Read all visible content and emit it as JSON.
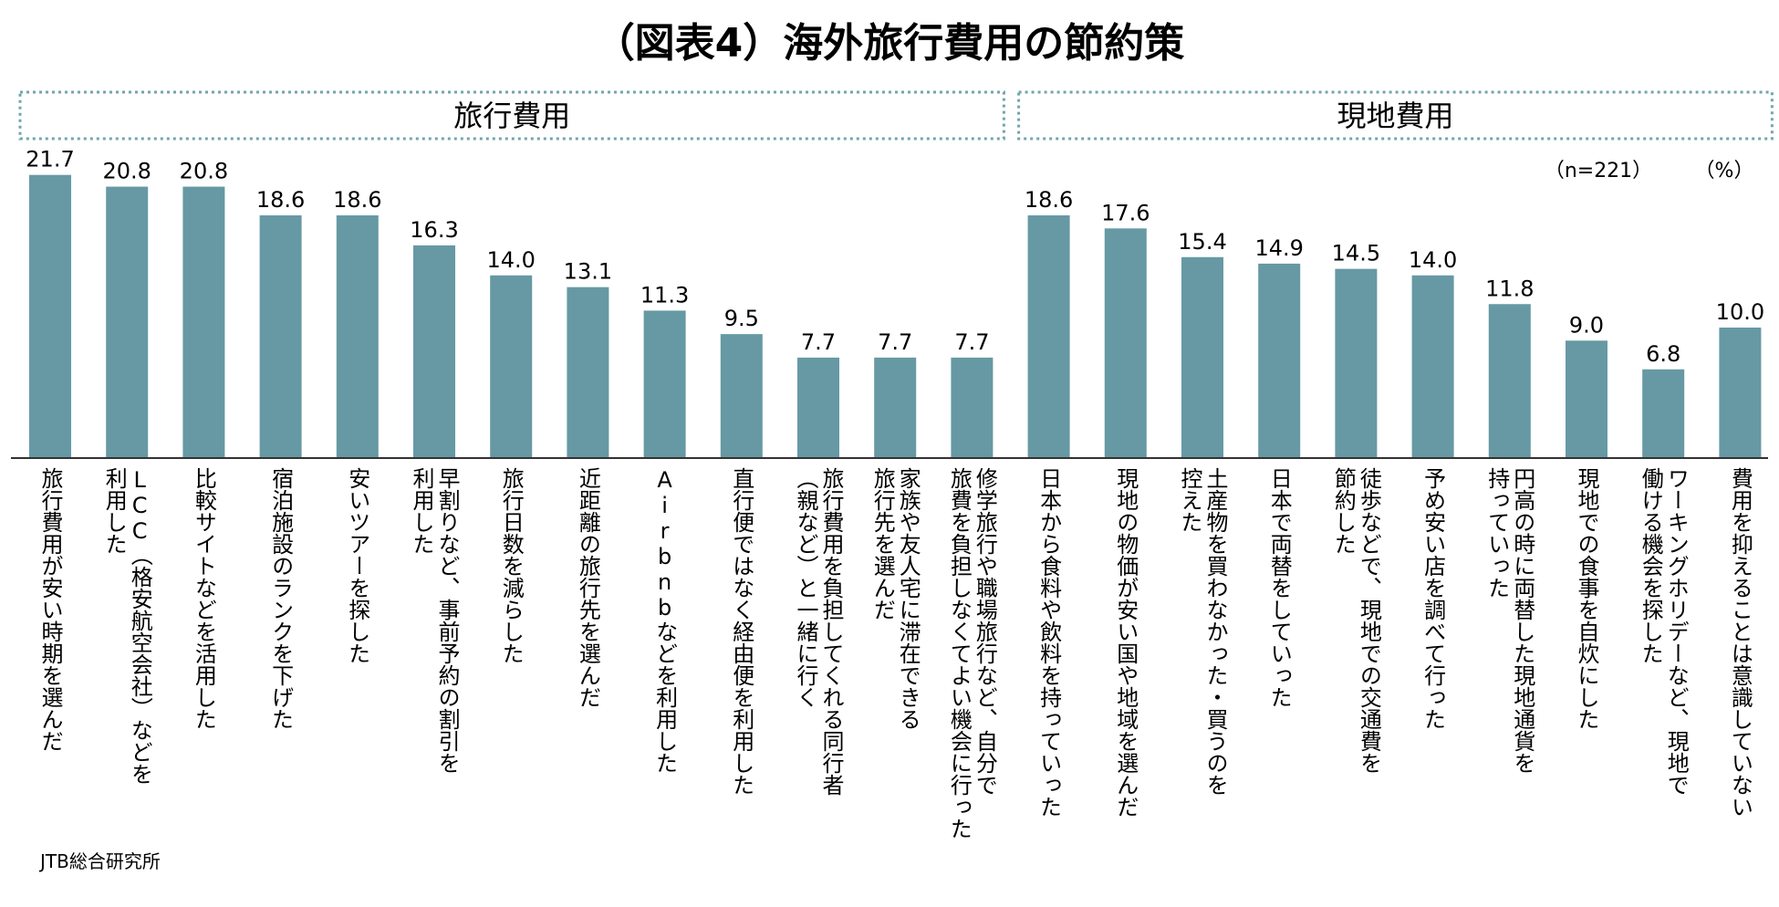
{
  "chart_data": {
    "type": "bar",
    "title": "（図表4）海外旅行費用の節約策",
    "groups": [
      {
        "label": "旅行費用",
        "start": 0,
        "end": 12
      },
      {
        "label": "現地費用",
        "start": 13,
        "end": 22
      }
    ],
    "sample_note": "（n=221）",
    "unit_note": "（%）",
    "source": "JTB総合研究所",
    "ylim": [
      0,
      25
    ],
    "categories": [
      "旅行費用が安い時期を選んだ",
      "LCC（格安航空会社）などを利用した",
      "比較サイトなどを活用した",
      "宿泊施設のランクを下げた",
      "安いツアーを探した",
      "早割りなど、事前予約の割引を利用した",
      "旅行日数を減らした",
      "近距離の旅行先を選んだ",
      "Airbnbなどを利用した",
      "直行便ではなく経由便を利用した",
      "旅行費用を負担してくれる同行者（親など）と一緒に行く",
      "家族や友人宅に滞在できる旅行先を選んだ",
      "修学旅行や職場旅行など、自分で旅費を負担しなくてよい機会に行った",
      "日本から食料や飲料を持っていった",
      "現地の物価が安い国や地域を選んだ",
      "土産物を買わなかった・買うのを控えた",
      "日本で両替をしていった",
      "徒歩などで、現地での交通費を節約した",
      "予め安い店を調べて行った",
      "円高の時に両替した現地通貨を持っていった",
      "現地での食事を自炊にした",
      "ワーキングホリデーなど、現地で働ける機会を探した",
      "費用を抑えることは意識していない"
    ],
    "values": [
      21.7,
      20.8,
      20.8,
      18.6,
      18.6,
      16.3,
      14.0,
      13.1,
      11.3,
      9.5,
      7.7,
      7.7,
      7.7,
      18.6,
      17.6,
      15.4,
      14.9,
      14.5,
      14.0,
      11.8,
      9.0,
      6.8,
      10.0
    ],
    "value_labels": [
      "21.7",
      "20.8",
      "20.8",
      "18.6",
      "18.6",
      "16.3",
      "14.0",
      "13.1",
      "11.3",
      "9.5",
      "7.7",
      "7.7",
      "7.7",
      "18.6",
      "17.6",
      "15.4",
      "14.9",
      "14.5",
      "14.0",
      "11.8",
      "9.0",
      "6.8",
      "10.0"
    ],
    "label_lines": [
      [
        "旅行費用が安い時期を選んだ"
      ],
      [
        "LCC（格安航空会社）などを",
        "利用した"
      ],
      [
        "比較サイトなどを活用した"
      ],
      [
        "宿泊施設のランクを下げた"
      ],
      [
        "安いツアーを探した"
      ],
      [
        "早割りなど、事前予約の割引を",
        "利用した"
      ],
      [
        "旅行日数を減らした"
      ],
      [
        "近距離の旅行先を選んだ"
      ],
      [
        "Airbnbなどを利用した"
      ],
      [
        "直行便ではなく経由便を利用した"
      ],
      [
        "旅行費用を負担してくれる同行者",
        "（親など）と一緒に行く"
      ],
      [
        "家族や友人宅に滞在できる",
        "旅行先を選んだ"
      ],
      [
        "修学旅行や職場旅行など、自分で",
        "旅費を負担しなくてよい機会に行った"
      ],
      [
        "日本から食料や飲料を持っていった"
      ],
      [
        "現地の物価が安い国や地域を選んだ"
      ],
      [
        "土産物を買わなかった・買うのを",
        "控えた"
      ],
      [
        "日本で両替をしていった"
      ],
      [
        "徒歩などで、現地での交通費を",
        "節約した"
      ],
      [
        "予め安い店を調べて行った"
      ],
      [
        "円高の時に両替した現地通貨を",
        "持っていった"
      ],
      [
        "現地での食事を自炊にした"
      ],
      [
        "ワーキングホリデーなど、現地で",
        "働ける機会を探した"
      ],
      [
        "費用を抑えることは意識していない"
      ]
    ],
    "colors": {
      "bar": "#6699a4",
      "group_border": "#6fa6ad",
      "axis": "#333333",
      "text": "#222222"
    }
  }
}
